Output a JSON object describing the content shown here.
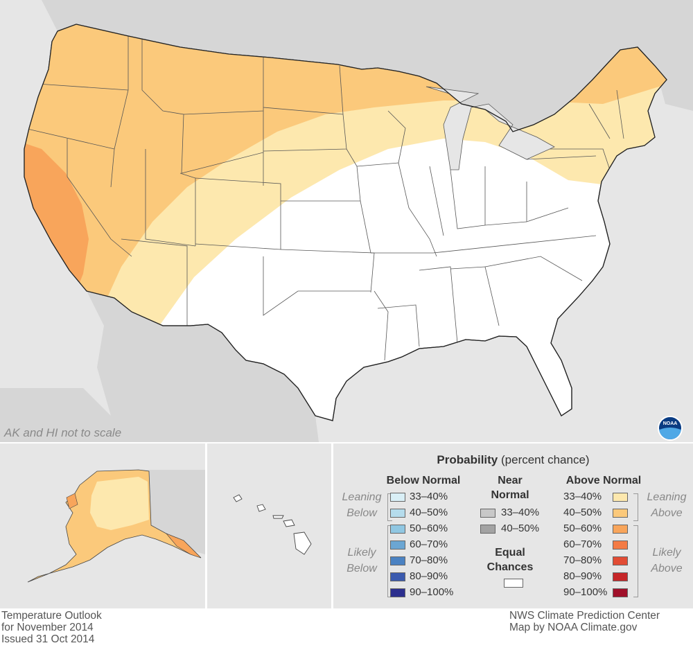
{
  "map_note": "AK and HI not to scale",
  "logo_text": "NOAA",
  "legend": {
    "title": "Probability",
    "subtitle": "(percent chance)",
    "below_normal": {
      "heading": "Below Normal",
      "leaning_label": "Leaning Below",
      "likely_label": "Likely Below",
      "items": [
        {
          "label": "33–40%",
          "color": "#d9eff6"
        },
        {
          "label": "40–50%",
          "color": "#b5dcec"
        },
        {
          "label": "50–60%",
          "color": "#90c7e2"
        },
        {
          "label": "60–70%",
          "color": "#6ba6d3"
        },
        {
          "label": "70–80%",
          "color": "#4b82c2"
        },
        {
          "label": "80–90%",
          "color": "#3b5aae"
        },
        {
          "label": "90–100%",
          "color": "#2c2f8e"
        }
      ]
    },
    "near_normal": {
      "heading": "Near Normal",
      "items": [
        {
          "label": "33–40%",
          "color": "#c8c8c8"
        },
        {
          "label": "40–50%",
          "color": "#a3a3a3"
        }
      ]
    },
    "equal_chances": {
      "heading": "Equal Chances",
      "color": "#ffffff"
    },
    "above_normal": {
      "heading": "Above Normal",
      "leaning_label": "Leaning Above",
      "likely_label": "Likely Above",
      "items": [
        {
          "label": "33–40%",
          "color": "#fde8ae"
        },
        {
          "label": "40–50%",
          "color": "#fbc97b"
        },
        {
          "label": "50–60%",
          "color": "#f8a55b"
        },
        {
          "label": "60–70%",
          "color": "#f37b45"
        },
        {
          "label": "70–80%",
          "color": "#e24c34"
        },
        {
          "label": "80–90%",
          "color": "#c62628"
        },
        {
          "label": "90–100%",
          "color": "#a0102a"
        }
      ]
    }
  },
  "footer_left": {
    "line1": "Temperature Outlook",
    "line2": "for November 2014",
    "line3": "Issued 31 Oct 2014"
  },
  "footer_right": {
    "line1": "NWS Climate Prediction Center",
    "line2": "Map by NOAA Climate.gov"
  },
  "map_colors": {
    "ocean": "#e6e6e6",
    "land_outside": "#d4d4d4",
    "equal_chances": "#ffffff",
    "above_33_40": "#fde8ae",
    "above_40_50": "#fbc97b",
    "above_50_60": "#f8a55b"
  }
}
